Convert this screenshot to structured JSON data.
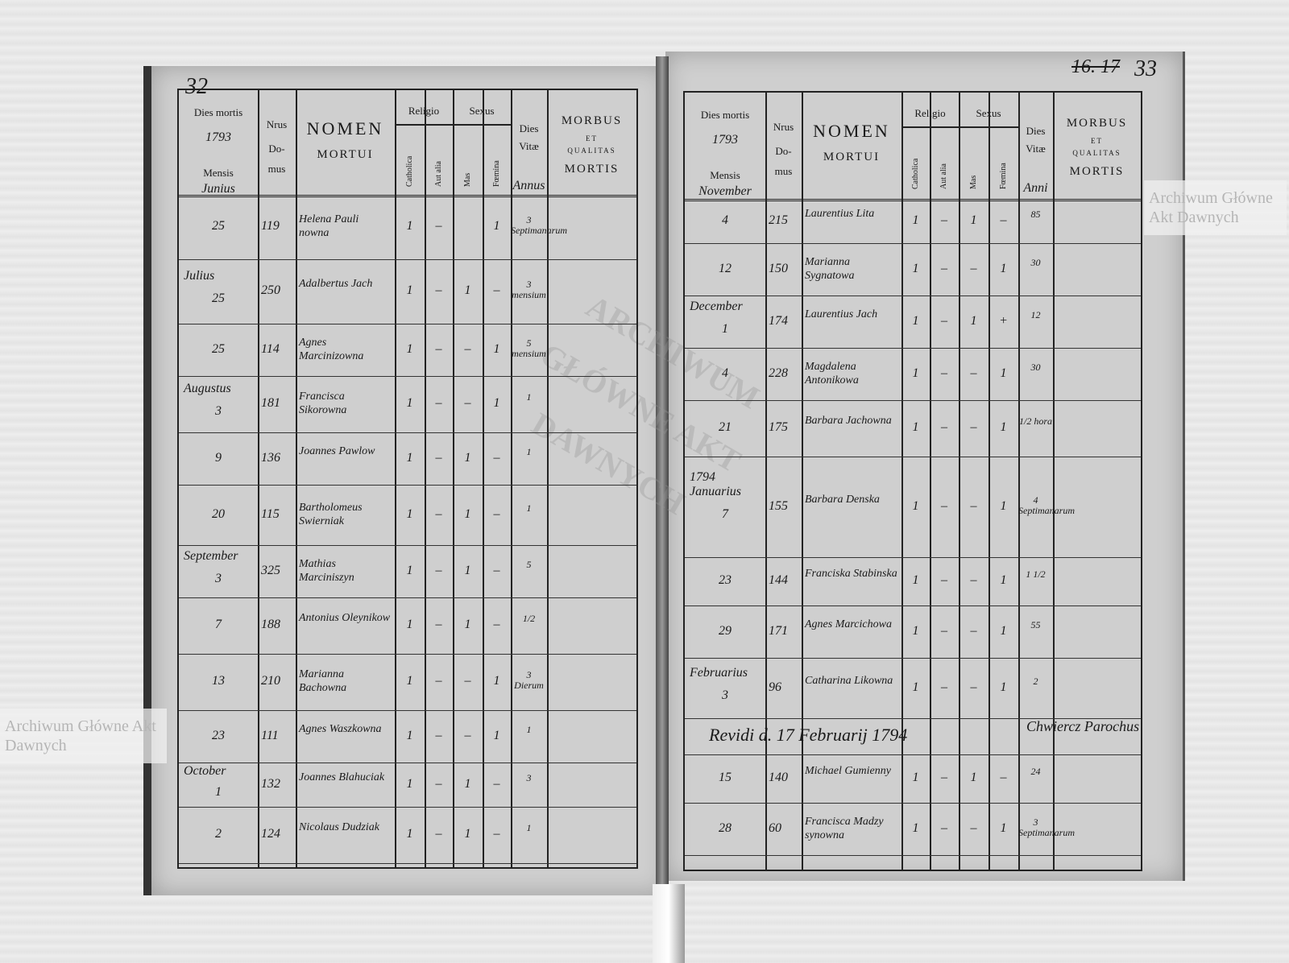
{
  "watermark": "Archiwum Główne Akt Dawnych",
  "stamp_text": "ARCHIWUM GŁÓWNE AKT DAWNYCH",
  "header": {
    "dies_mortis": "Dies mortis",
    "mensis": "Mensis",
    "nrus": "Nrus",
    "do": "Do-",
    "mus": "mus",
    "nomen": "NOMEN",
    "mortui": "MORTUI",
    "religio": "Religio",
    "sexus": "Sexus",
    "catholica": "Catholica",
    "aut_alia": "Aut alia",
    "mas": "Mas",
    "femina": "Fœmina",
    "dies": "Dies",
    "vitae": "Vitæ",
    "morbus": "MORBUS",
    "et": "ET",
    "qualitas": "QUALITAS",
    "mortis": "MORTIS"
  },
  "left": {
    "page_number": "32",
    "year": "1793",
    "month_head": "Junius",
    "vitae_unit": "Annus",
    "rows": [
      {
        "month": "",
        "day": "25",
        "nr": "119",
        "name": "Helena Pauli nowna",
        "cath": "1",
        "alia": "–",
        "mas": "",
        "fem": "1",
        "vitae": "3 Septimanarum"
      },
      {
        "month": "Julius",
        "day": "25",
        "nr": "250",
        "name": "Adalbertus Jach",
        "cath": "1",
        "alia": "–",
        "mas": "1",
        "fem": "–",
        "vitae": "3 mensium"
      },
      {
        "month": "",
        "day": "25",
        "nr": "114",
        "name": "Agnes Marcinizowna",
        "cath": "1",
        "alia": "–",
        "mas": "–",
        "fem": "1",
        "vitae": "5 mensium"
      },
      {
        "month": "Augustus",
        "day": "3",
        "nr": "181",
        "name": "Francisca Sikorowna",
        "cath": "1",
        "alia": "–",
        "mas": "–",
        "fem": "1",
        "vitae": "1"
      },
      {
        "month": "",
        "day": "9",
        "nr": "136",
        "name": "Joannes Pawlow",
        "cath": "1",
        "alia": "–",
        "mas": "1",
        "fem": "–",
        "vitae": "1"
      },
      {
        "month": "",
        "day": "20",
        "nr": "115",
        "name": "Bartholomeus Swierniak",
        "cath": "1",
        "alia": "–",
        "mas": "1",
        "fem": "–",
        "vitae": "1"
      },
      {
        "month": "September",
        "day": "3",
        "nr": "325",
        "name": "Mathias Marciniszyn",
        "cath": "1",
        "alia": "–",
        "mas": "1",
        "fem": "–",
        "vitae": "5"
      },
      {
        "month": "",
        "day": "7",
        "nr": "188",
        "name": "Antonius Oleynikow",
        "cath": "1",
        "alia": "–",
        "mas": "1",
        "fem": "–",
        "vitae": "1/2"
      },
      {
        "month": "",
        "day": "13",
        "nr": "210",
        "name": "Marianna Bachowna",
        "cath": "1",
        "alia": "–",
        "mas": "–",
        "fem": "1",
        "vitae": "3 Dierum"
      },
      {
        "month": "",
        "day": "23",
        "nr": "111",
        "name": "Agnes Waszkowna",
        "cath": "1",
        "alia": "–",
        "mas": "–",
        "fem": "1",
        "vitae": "1"
      },
      {
        "month": "October",
        "day": "1",
        "nr": "132",
        "name": "Joannes Blahuciak",
        "cath": "1",
        "alia": "–",
        "mas": "1",
        "fem": "–",
        "vitae": "3"
      },
      {
        "month": "",
        "day": "2",
        "nr": "124",
        "name": "Nicolaus Dudziak",
        "cath": "1",
        "alia": "–",
        "mas": "1",
        "fem": "–",
        "vitae": "1"
      }
    ]
  },
  "right": {
    "page_number": "33",
    "old_number": "16. 17",
    "year": "1793",
    "month_head": "November",
    "vitae_unit": "Anni",
    "revision_note": "Revidi d. 17 Februarij 1794",
    "signature": "Chwiercz Parochus",
    "rows": [
      {
        "month": "",
        "day": "4",
        "nr": "215",
        "name": "Laurentius Lita",
        "cath": "1",
        "alia": "–",
        "mas": "1",
        "fem": "–",
        "vitae": "85"
      },
      {
        "month": "",
        "day": "12",
        "nr": "150",
        "name": "Marianna Sygnatowa",
        "cath": "1",
        "alia": "–",
        "mas": "–",
        "fem": "1",
        "vitae": "30"
      },
      {
        "month": "December",
        "day": "1",
        "nr": "174",
        "name": "Laurentius Jach",
        "cath": "1",
        "alia": "–",
        "mas": "1",
        "fem": "+",
        "vitae": "12"
      },
      {
        "month": "",
        "day": "4",
        "nr": "228",
        "name": "Magdalena Antonikowa",
        "cath": "1",
        "alia": "–",
        "mas": "–",
        "fem": "1",
        "vitae": "30"
      },
      {
        "month": "",
        "day": "21",
        "nr": "175",
        "name": "Barbara Jachowna",
        "cath": "1",
        "alia": "–",
        "mas": "–",
        "fem": "1",
        "vitae": "1/2 hora"
      },
      {
        "month": "1794 Januarius",
        "day": "7",
        "nr": "155",
        "name": "Barbara Denska",
        "cath": "1",
        "alia": "–",
        "mas": "–",
        "fem": "1",
        "vitae": "4 Septimanarum"
      },
      {
        "month": "",
        "day": "23",
        "nr": "144",
        "name": "Franciska Stabinska",
        "cath": "1",
        "alia": "–",
        "mas": "–",
        "fem": "1",
        "vitae": "1 1/2"
      },
      {
        "month": "",
        "day": "29",
        "nr": "171",
        "name": "Agnes Marcichowa",
        "cath": "1",
        "alia": "–",
        "mas": "–",
        "fem": "1",
        "vitae": "55"
      },
      {
        "month": "Februarius",
        "day": "3",
        "nr": "96",
        "name": "Catharina Likowna",
        "cath": "1",
        "alia": "–",
        "mas": "–",
        "fem": "1",
        "vitae": "2"
      },
      {
        "month": "",
        "day": "15",
        "nr": "140",
        "name": "Michael Gumienny",
        "cath": "1",
        "alia": "–",
        "mas": "1",
        "fem": "–",
        "vitae": "24"
      },
      {
        "month": "",
        "day": "28",
        "nr": "60",
        "name": "Francisca Madzy synowna",
        "cath": "1",
        "alia": "–",
        "mas": "–",
        "fem": "1",
        "vitae": "3 Septimanarum"
      }
    ]
  }
}
